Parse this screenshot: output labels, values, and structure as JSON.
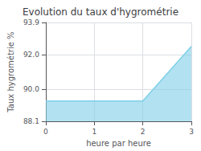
{
  "chart_data": {
    "type": "area",
    "title": "Evolution du taux d'hygrométrie",
    "xlabel": "heure par heure",
    "ylabel": "Taux hygrométrie %",
    "x": [
      0,
      2,
      3
    ],
    "values": [
      89.3,
      89.3,
      92.5
    ],
    "xlim": [
      0,
      3
    ],
    "ylim": [
      88.1,
      93.9
    ],
    "xticks": [
      0,
      1,
      2,
      3
    ],
    "yticks": [
      88.1,
      {
        "value": 90.0,
        "label": "90.0"
      },
      {
        "value": 92.0,
        "label": "92.0"
      },
      93.9
    ],
    "grid": true,
    "color": "#7ecfe8"
  }
}
